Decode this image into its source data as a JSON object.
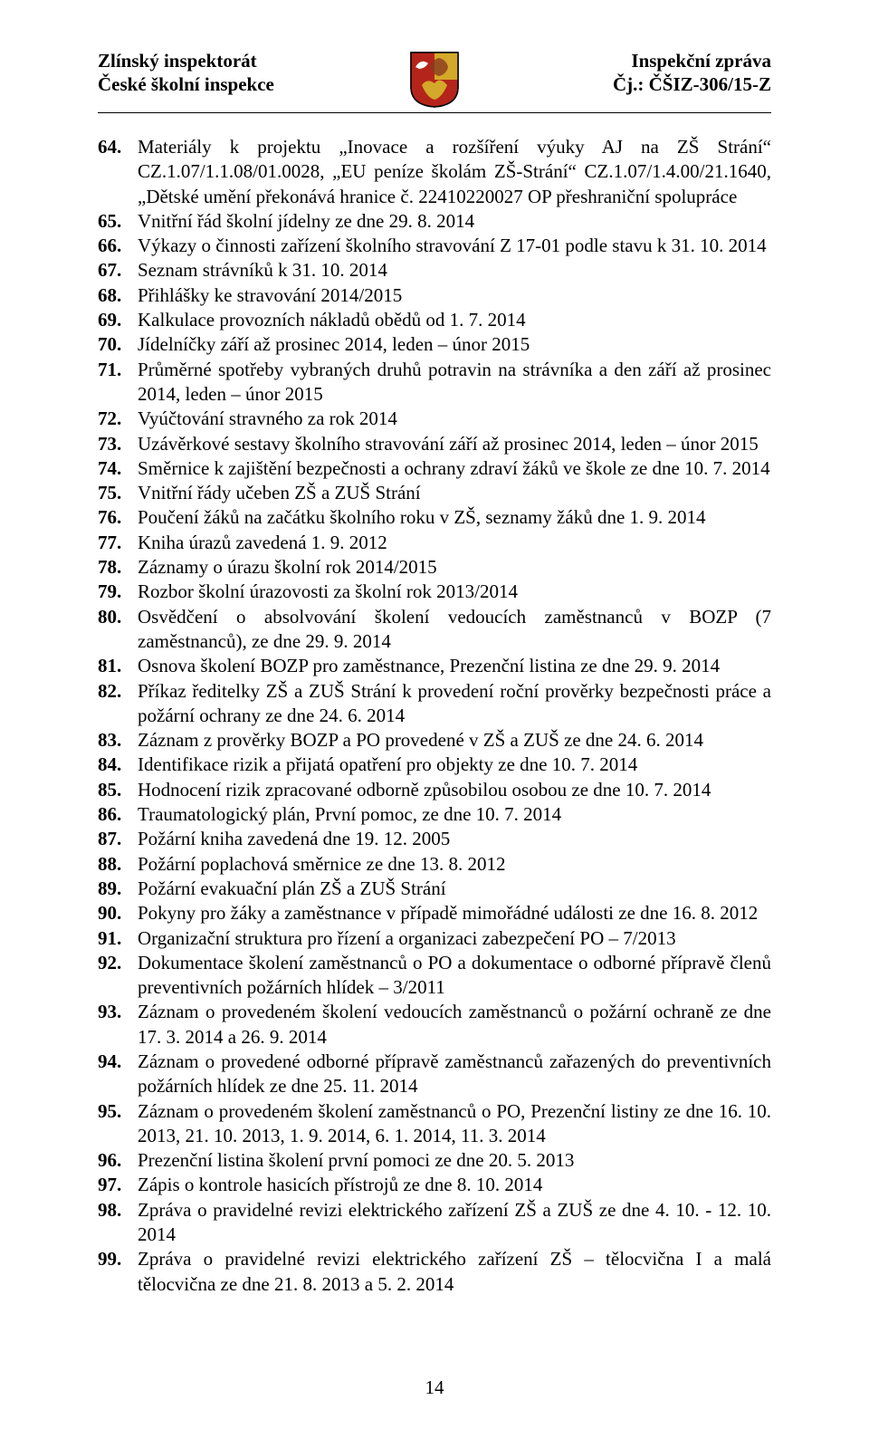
{
  "header": {
    "left_line1": "Zlínský inspektorát",
    "left_line2": "České školní inspekce",
    "right_line1": "Inspekční zpráva",
    "right_line2": "Čj.: ČŠIZ-306/15-Z"
  },
  "crest": {
    "border_color": "#000000",
    "fill_red": "#b5241b",
    "fill_gold": "#d4a829",
    "fill_white": "#ffffff"
  },
  "list_start": 64,
  "items": [
    "Materiály k projektu „Inovace a rozšíření výuky AJ na ZŠ Strání“ CZ.1.07/1.1.08/01.0028, „EU peníze školám ZŠ-Strání“ CZ.1.07/1.4.00/21.1640, „Dětské umění překonává hranice č. 22410220027 OP přeshraniční spolupráce",
    "Vnitřní řád školní jídelny ze dne 29. 8. 2014",
    "Výkazy o činnosti zařízení školního stravování Z 17-01 podle stavu k 31. 10. 2014",
    "Seznam strávníků k 31. 10. 2014",
    "Přihlášky ke stravování 2014/2015",
    "Kalkulace provozních nákladů obědů od 1. 7. 2014",
    "Jídelníčky září až prosinec 2014, leden – únor 2015",
    "Průměrné spotřeby vybraných druhů potravin na strávníka a den září až prosinec 2014, leden – únor 2015",
    "Vyúčtování stravného za rok 2014",
    "Uzávěrkové sestavy školního stravování září až prosinec 2014, leden – únor 2015",
    "Směrnice k zajištění bezpečnosti a ochrany zdraví žáků ve škole ze dne 10. 7. 2014",
    "Vnitřní řády učeben ZŠ a ZUŠ Strání",
    "Poučení žáků na začátku školního roku v ZŠ, seznamy žáků dne 1. 9. 2014",
    "Kniha úrazů zavedená 1. 9. 2012",
    "Záznamy o úrazu školní rok 2014/2015",
    "Rozbor školní úrazovosti za školní rok 2013/2014",
    "Osvědčení o absolvování školení vedoucích zaměstnanců v BOZP (7 zaměstnanců), ze dne 29. 9. 2014",
    "Osnova školení BOZP pro zaměstnance, Prezenční listina ze dne 29. 9. 2014",
    "Příkaz ředitelky ZŠ a ZUŠ Strání k provedení roční prověrky bezpečnosti práce a požární ochrany ze dne 24. 6. 2014",
    "Záznam z prověrky BOZP a PO provedené v ZŠ a ZUŠ ze dne 24. 6. 2014",
    "Identifikace rizik a přijatá opatření pro objekty ze dne 10. 7. 2014",
    "Hodnocení rizik zpracované odborně způsobilou osobou ze dne 10. 7. 2014",
    "Traumatologický plán, První pomoc, ze dne 10. 7. 2014",
    "Požární kniha zavedená dne 19. 12. 2005",
    "Požární poplachová směrnice ze dne 13. 8. 2012",
    "Požární evakuační plán ZŠ a ZUŠ Strání",
    "Pokyny pro žáky a zaměstnance v případě mimořádné události ze dne 16. 8. 2012",
    "Organizační struktura pro řízení a organizaci zabezpečení PO – 7/2013",
    "Dokumentace školení zaměstnanců o PO a dokumentace o odborné přípravě členů preventivních požárních hlídek – 3/2011",
    "Záznam o provedeném školení vedoucích zaměstnanců o požární ochraně ze dne 17. 3. 2014 a 26. 9. 2014",
    "Záznam o provedené odborné přípravě zaměstnanců zařazených do preventivních požárních hlídek ze dne 25. 11. 2014",
    "Záznam o provedeném školení zaměstnanců o PO, Prezenční listiny ze dne 16. 10. 2013, 21. 10. 2013, 1. 9. 2014, 6. 1. 2014, 11. 3. 2014",
    "Prezenční listina školení první pomoci ze dne 20. 5. 2013",
    "Zápis o kontrole hasicích přístrojů ze dne 8. 10. 2014",
    "Zpráva o pravidelné revizi elektrického zařízení ZŠ a ZUŠ ze dne 4. 10. - 12. 10. 2014",
    "Zpráva o pravidelné revizi elektrického zařízení ZŠ – tělocvična I a malá tělocvična ze dne 21. 8. 2013 a 5. 2. 2014"
  ],
  "page_number": "14"
}
